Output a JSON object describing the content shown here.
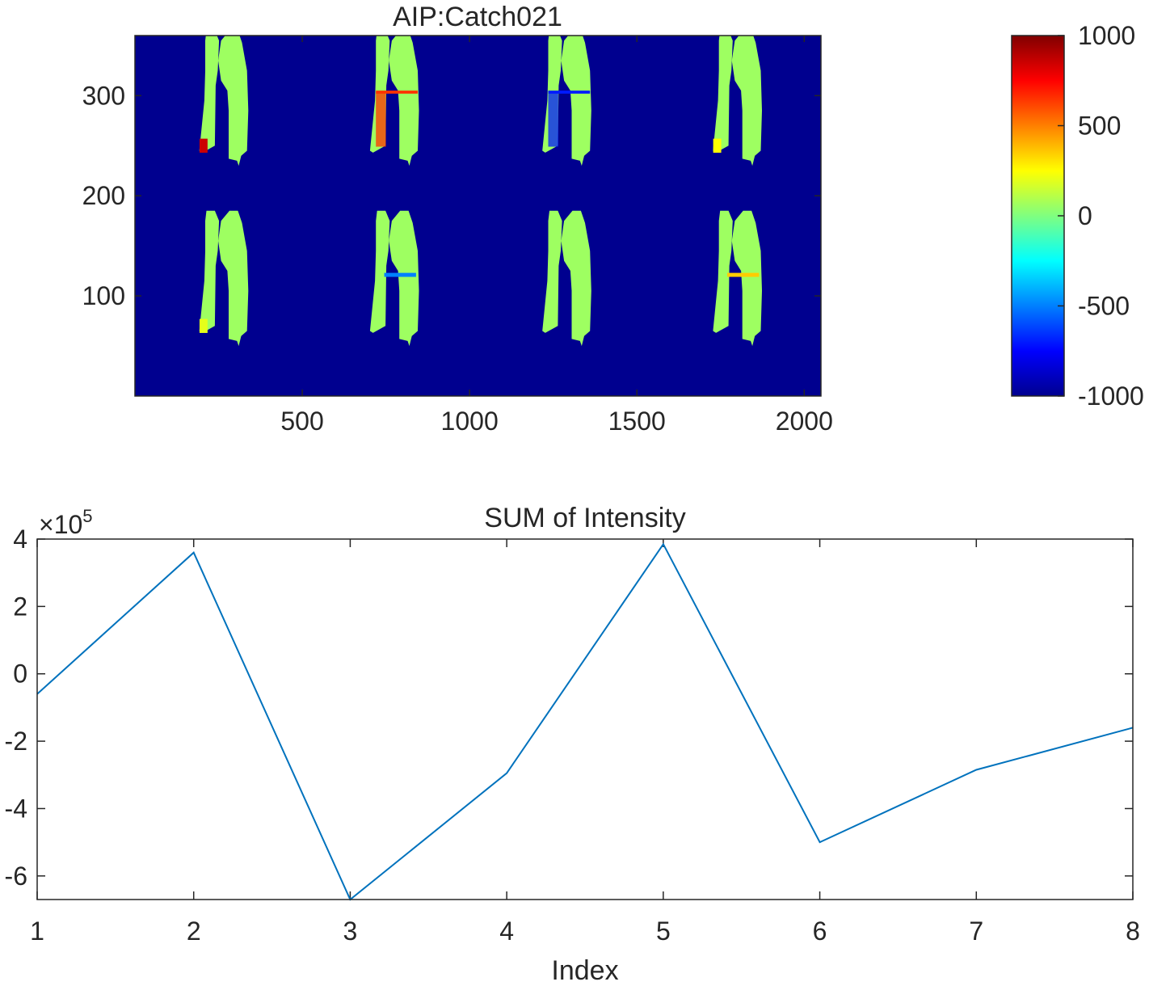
{
  "chart_data": [
    {
      "type": "heatmap",
      "title": "AIP:Catch021",
      "xlabel": "",
      "ylabel": "",
      "xticks": [
        500,
        1000,
        1500,
        2000
      ],
      "yticks": [
        100,
        200,
        300
      ],
      "xlim": [
        0,
        2050
      ],
      "ylim": [
        0,
        360
      ],
      "grid": false,
      "background_color": "#00008f",
      "colormap": "jet",
      "colorbar": {
        "ticks": [
          1000,
          500,
          0,
          -500,
          -1000
        ],
        "range": [
          -1000,
          1000
        ]
      },
      "panels": [
        {
          "row": 1,
          "col": 1,
          "x_center": 245,
          "y_base": 235,
          "highlight": "lower-left",
          "highlight_value": 850
        },
        {
          "row": 1,
          "col": 2,
          "x_center": 755,
          "y_base": 235,
          "highlight": "left-lobe-top-band",
          "highlight_value": 650
        },
        {
          "row": 1,
          "col": 3,
          "x_center": 1270,
          "y_base": 235,
          "highlight": "left-lobe-top-band",
          "highlight_value": -700
        },
        {
          "row": 1,
          "col": 4,
          "x_center": 1780,
          "y_base": 235,
          "highlight": "lower-left",
          "highlight_value": 250
        },
        {
          "row": 2,
          "col": 1,
          "x_center": 245,
          "y_base": 55,
          "highlight": "lower-left",
          "highlight_value": 200
        },
        {
          "row": 2,
          "col": 2,
          "x_center": 755,
          "y_base": 55,
          "highlight": "mid-band",
          "highlight_value": -500
        },
        {
          "row": 2,
          "col": 3,
          "x_center": 1270,
          "y_base": 55,
          "highlight": "none",
          "highlight_value": 0
        },
        {
          "row": 2,
          "col": 4,
          "x_center": 1780,
          "y_base": 55,
          "highlight": "mid-band",
          "highlight_value": 350
        }
      ]
    },
    {
      "type": "line",
      "title": "SUM of Intensity",
      "xlabel": "Index",
      "ylabel": "",
      "exponent_label": "×10",
      "exponent_power": "5",
      "x": [
        1,
        2,
        3,
        4,
        5,
        6,
        7,
        8
      ],
      "series": [
        {
          "values": [
            -60000,
            360000,
            -670000,
            -295000,
            385000,
            -500000,
            -285000,
            -160000
          ]
        }
      ],
      "xlim": [
        1,
        8
      ],
      "ylim": [
        -670000,
        400000
      ],
      "xticks": [
        1,
        2,
        3,
        4,
        5,
        6,
        7,
        8
      ],
      "yticks": [
        4,
        2,
        0,
        -2,
        -4,
        -6
      ],
      "ytick_scale": 100000,
      "line_color": "#0072bd",
      "grid": false
    }
  ]
}
